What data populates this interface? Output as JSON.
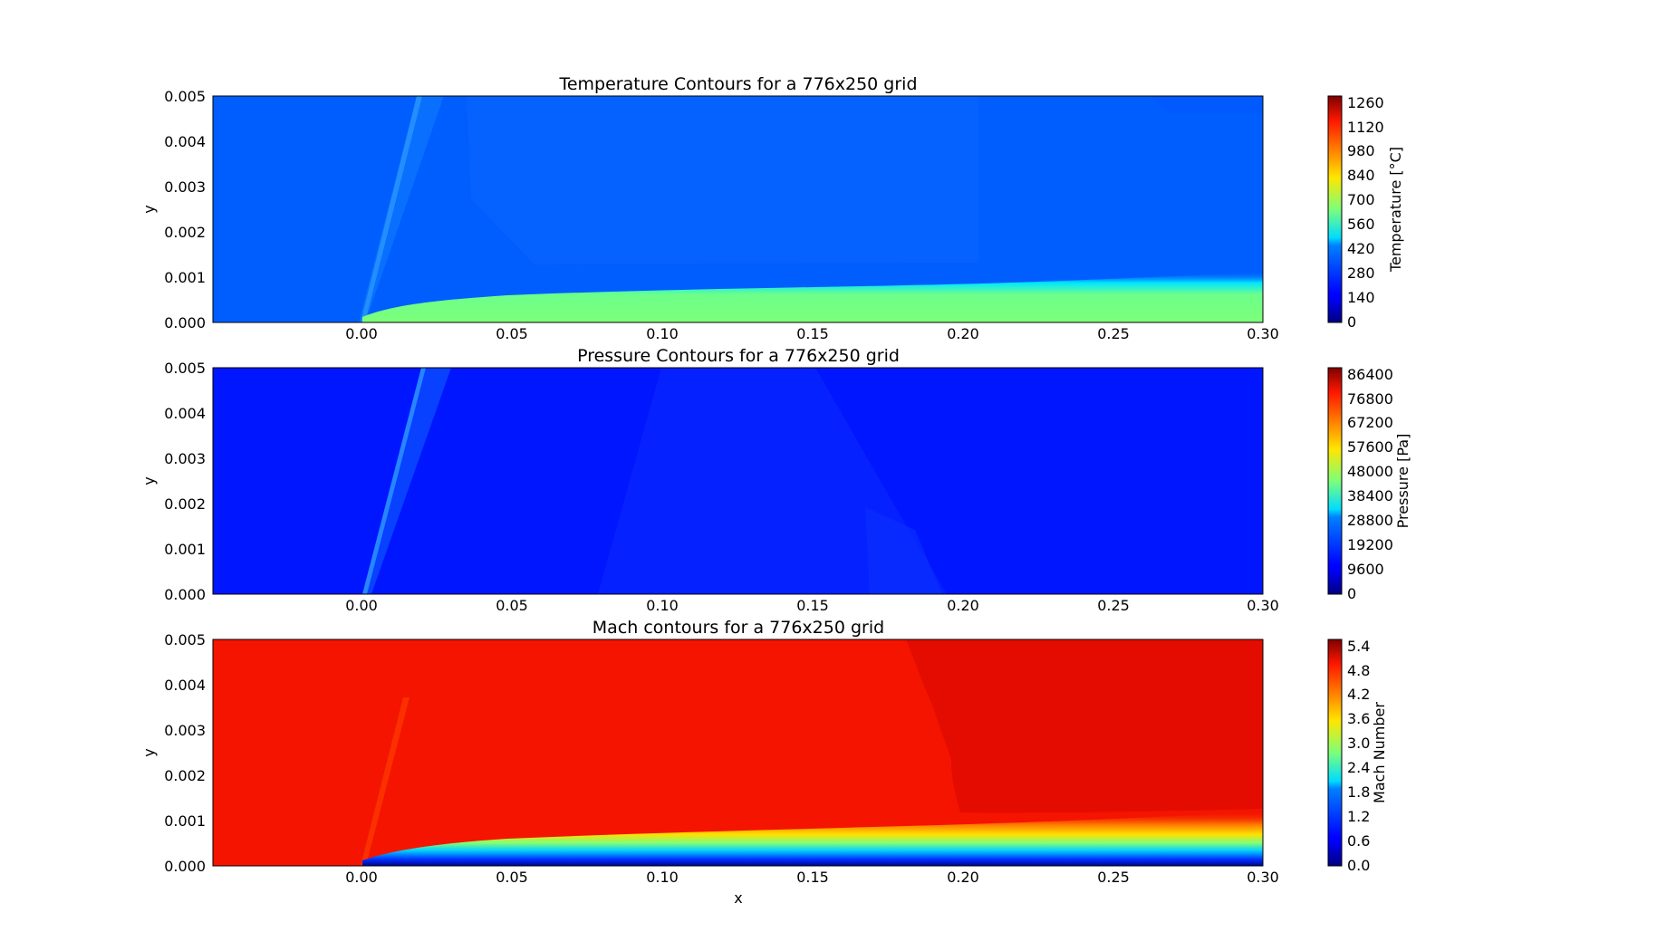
{
  "chart_data": [
    {
      "type": "heatmap",
      "title": "Temperature Contours for a 776x250 grid",
      "xlabel": "",
      "ylabel": "y",
      "xlim": [
        -0.05,
        0.3
      ],
      "ylim": [
        0.0,
        0.005
      ],
      "x_ticks": [
        "0.00",
        "0.05",
        "0.10",
        "0.15",
        "0.20",
        "0.25",
        "0.30"
      ],
      "y_ticks": [
        "0.000",
        "0.001",
        "0.002",
        "0.003",
        "0.004",
        "0.005"
      ],
      "colorbar": {
        "label": "Temperature [°C]",
        "range": [
          0,
          1300
        ],
        "ticks": [
          "0",
          "140",
          "280",
          "420",
          "560",
          "700",
          "840",
          "980",
          "1120",
          "1260"
        ]
      },
      "field": {
        "freestream_value": 220,
        "shock_value": 300,
        "boundary_layer_value": 720,
        "boundary_layer_thickness_at_x": [
          {
            "x": 0.0,
            "y": 0.0001
          },
          {
            "x": 0.05,
            "y": 0.0004
          },
          {
            "x": 0.1,
            "y": 0.0005
          },
          {
            "x": 0.2,
            "y": 0.0007
          },
          {
            "x": 0.3,
            "y": 0.0009
          }
        ]
      }
    },
    {
      "type": "heatmap",
      "title": "Pressure Contours for a 776x250 grid",
      "xlabel": "",
      "ylabel": "y",
      "xlim": [
        -0.05,
        0.3
      ],
      "ylim": [
        0.0,
        0.005
      ],
      "x_ticks": [
        "0.00",
        "0.05",
        "0.10",
        "0.15",
        "0.20",
        "0.25",
        "0.30"
      ],
      "y_ticks": [
        "0.000",
        "0.001",
        "0.002",
        "0.003",
        "0.004",
        "0.005"
      ],
      "colorbar": {
        "label": "Pressure [Pa]",
        "range": [
          0,
          90000
        ],
        "ticks": [
          "0",
          "9600",
          "19200",
          "28800",
          "38400",
          "48000",
          "57600",
          "67200",
          "76800",
          "86400"
        ]
      },
      "field": {
        "freestream_value": 9000,
        "shock_value": 20000
      }
    },
    {
      "type": "heatmap",
      "title": "Mach contours for a 776x250 grid",
      "xlabel": "x",
      "ylabel": "y",
      "xlim": [
        -0.05,
        0.3
      ],
      "ylim": [
        0.0,
        0.005
      ],
      "x_ticks": [
        "0.00",
        "0.05",
        "0.10",
        "0.15",
        "0.20",
        "0.25",
        "0.30"
      ],
      "y_ticks": [
        "0.000",
        "0.001",
        "0.002",
        "0.003",
        "0.004",
        "0.005"
      ],
      "colorbar": {
        "label": "Mach Number",
        "range": [
          0,
          5.6
        ],
        "ticks": [
          "0.0",
          "0.6",
          "1.2",
          "1.8",
          "2.4",
          "3.0",
          "3.6",
          "4.2",
          "4.8",
          "5.4"
        ]
      },
      "field": {
        "freestream_value": 5.0,
        "wall_value": 0.0
      }
    }
  ]
}
